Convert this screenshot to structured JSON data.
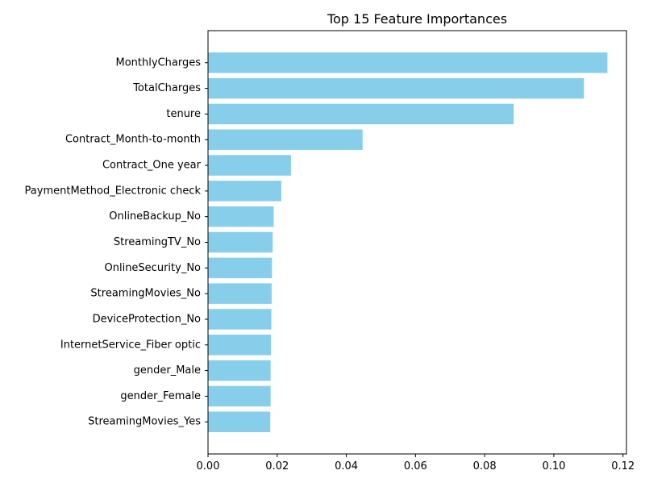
{
  "chart_data": {
    "type": "bar",
    "orientation": "horizontal",
    "title": "Top 15 Feature Importances",
    "xlabel": "",
    "ylabel": "",
    "xlim": [
      0,
      0.121
    ],
    "xticks": [
      0.0,
      0.02,
      0.04,
      0.06,
      0.08,
      0.1,
      0.12
    ],
    "xtick_labels": [
      "0.00",
      "0.02",
      "0.04",
      "0.06",
      "0.08",
      "0.10",
      "0.12"
    ],
    "grid": false,
    "legend": "none",
    "bar_color": "#87CEEB",
    "categories": [
      "MonthlyCharges",
      "TotalCharges",
      "tenure",
      "Contract_Month-to-month",
      "Contract_One year",
      "PaymentMethod_Electronic check",
      "OnlineBackup_No",
      "StreamingTV_No",
      "OnlineSecurity_No",
      "StreamingMovies_No",
      "DeviceProtection_No",
      "InternetService_Fiber optic",
      "gender_Male",
      "gender_Female",
      "StreamingMovies_Yes"
    ],
    "values": [
      0.1155,
      0.1087,
      0.0884,
      0.0447,
      0.024,
      0.0212,
      0.019,
      0.0187,
      0.0185,
      0.0184,
      0.0183,
      0.0182,
      0.0181,
      0.0181,
      0.018
    ]
  }
}
